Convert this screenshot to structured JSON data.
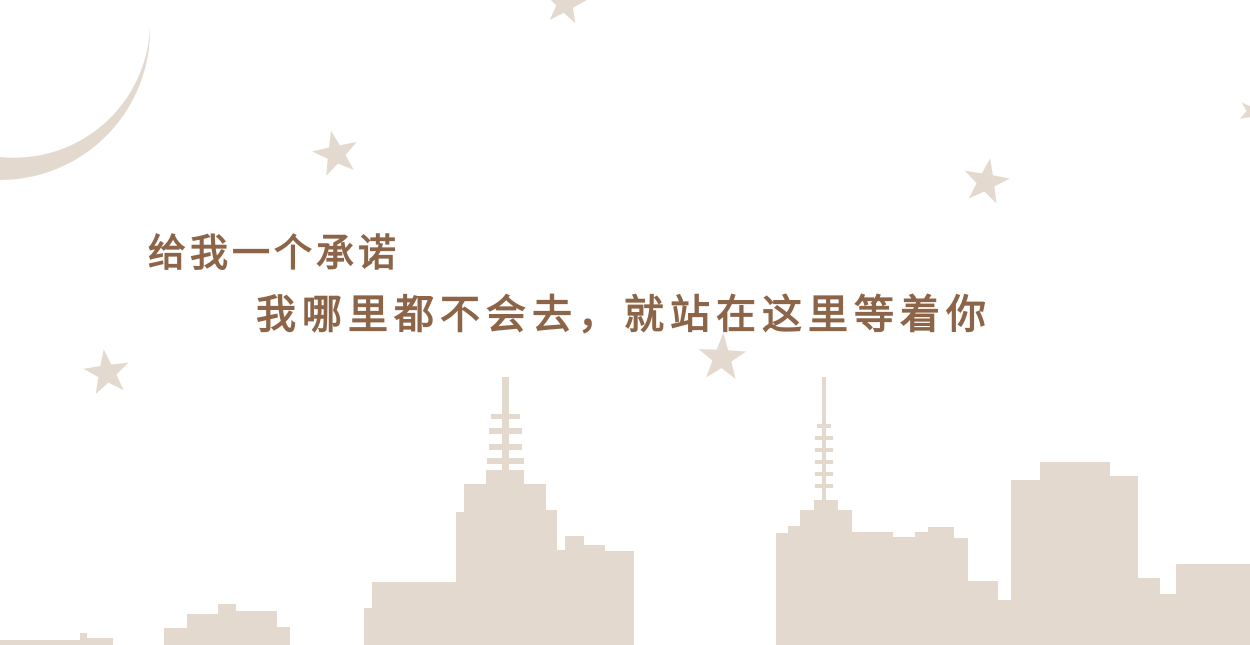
{
  "colors": {
    "background": "#ffffff",
    "silhouette": "#e3d9cf",
    "text": "#8c6447"
  },
  "slogan": {
    "line1": "给我一个承诺",
    "line2": "我哪里都不会去，就站在这里等着你"
  },
  "icons": [
    "crescent-moon-icon",
    "star-icon",
    "city-skyline"
  ]
}
